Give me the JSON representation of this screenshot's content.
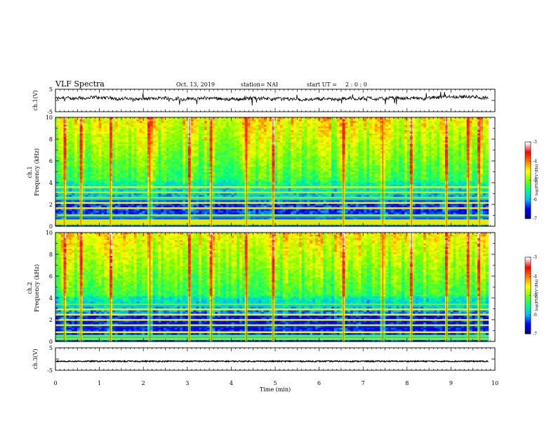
{
  "header": {
    "title": "VLF Spectra",
    "date": "Oct. 13, 2019",
    "station": "station= NAI",
    "start_label": "start  UT =",
    "start_value": "2 : 0 : 0"
  },
  "chart_data": {
    "type": "heatmap",
    "title": "VLF Spectra",
    "time_axis": {
      "label": "Time  (min)",
      "range": [
        0,
        10
      ],
      "ticks": [
        "0",
        "1",
        "2",
        "3",
        "4",
        "5",
        "6",
        "7",
        "8",
        "9",
        "10"
      ],
      "data_end": 9.85
    },
    "waveform_ch1": {
      "ylabel": "ch.1(V)",
      "ylim": [
        -5,
        5
      ],
      "ticks": [
        "5",
        "-5"
      ],
      "mean_level": 0.8
    },
    "spectrogram_ch1": {
      "ylabel_channel": "ch.1",
      "ylabel": "Frequency  (kHz)",
      "ylim": [
        0,
        10
      ],
      "ticks": [
        "0",
        "2",
        "4",
        "6",
        "8",
        "10"
      ],
      "colorbar": {
        "label": "log(PSD)(V²/Hz)",
        "range": [
          -7,
          -3
        ],
        "ticks": [
          "-3",
          "-4",
          "-5",
          "-6",
          "-7"
        ],
        "colors": [
          "#000080",
          "#0000ff",
          "#00bfff",
          "#00ff80",
          "#80ff00",
          "#ffff00",
          "#ff8000",
          "#ff0000",
          "#ffffff"
        ]
      },
      "bright_lines_khz": [
        0.2,
        0.4,
        0.6,
        1.0,
        1.7,
        2.2,
        2.6,
        3.1,
        3.6
      ],
      "sferic_times_min": [
        0.2,
        0.58,
        1.25,
        2.15,
        3.05,
        3.55,
        4.35,
        4.95,
        6.55,
        7.45,
        8.1,
        8.9,
        9.4,
        9.65
      ]
    },
    "spectrogram_ch2": {
      "ylabel_channel": "ch.2",
      "ylabel": "Frequency  (kHz)",
      "ylim": [
        0,
        10
      ],
      "ticks": [
        "0",
        "2",
        "4",
        "6",
        "8",
        "10"
      ],
      "colorbar": {
        "label": "log(PSD)(V²/Hz)",
        "range": [
          -7,
          -3
        ],
        "ticks": [
          "-3",
          "-4",
          "-5",
          "-6",
          "-7"
        ],
        "colors": [
          "#000080",
          "#0000ff",
          "#00bfff",
          "#00ff80",
          "#80ff00",
          "#ffff00",
          "#ff8000",
          "#ff0000",
          "#ffffff"
        ]
      },
      "bright_lines_khz": [
        0.3,
        0.5,
        0.9,
        1.5,
        2.0,
        2.5,
        3.0,
        3.4
      ],
      "sferic_times_min": [
        0.2,
        0.58,
        1.25,
        2.15,
        3.05,
        3.55,
        4.35,
        4.95,
        6.55,
        7.45,
        8.1,
        8.9,
        9.4,
        9.65
      ]
    },
    "waveform_ch3": {
      "ylabel": "ch.3(V)",
      "ylim": [
        -5,
        5
      ],
      "ticks": [
        "5",
        "-5"
      ],
      "mean_level": -1.0
    }
  }
}
